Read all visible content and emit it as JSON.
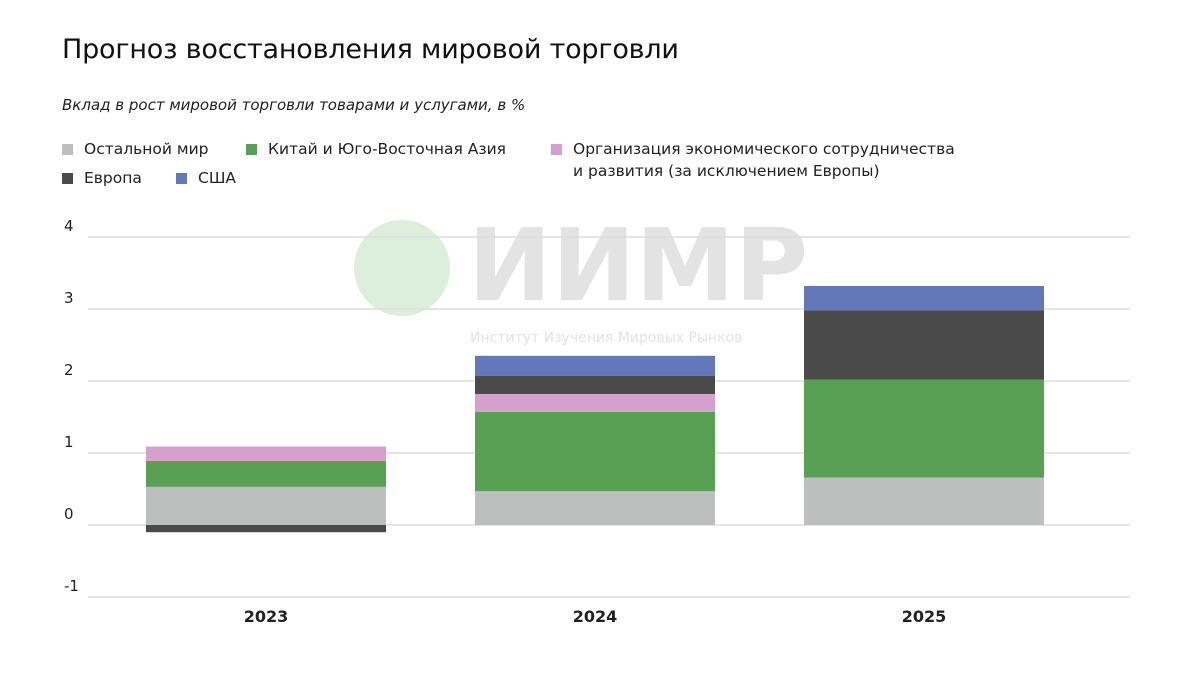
{
  "chart_data": {
    "type": "bar",
    "stacked": true,
    "title": "Прогноз восстановления мировой торговли",
    "subtitle": "Вклад в рост мировой торговли товарами и услугами, в %",
    "categories": [
      "2023",
      "2024",
      "2025"
    ],
    "series": [
      {
        "name": "Остальной мир",
        "color": "#bcbfbd",
        "values": [
          0.53,
          0.47,
          0.66
        ]
      },
      {
        "name": "Китай и Юго-Восточная Азия",
        "color": "#58a154",
        "values": [
          0.36,
          1.1,
          1.36
        ]
      },
      {
        "name": "Организация экономического сотрудничества и развития (за исключением Европы)",
        "color": "#d5a0cb",
        "values": [
          0.2,
          0.25,
          0.0
        ]
      },
      {
        "name": "Европа",
        "color": "#4a4a4a",
        "values": [
          -0.1,
          0.25,
          0.96
        ]
      },
      {
        "name": "США",
        "color": "#6378b8",
        "values": [
          0.0,
          0.28,
          0.34
        ]
      }
    ],
    "ylim": [
      -1,
      4
    ],
    "yticks": [
      "-1",
      "0",
      "1",
      "2",
      "3",
      "4"
    ],
    "grid": true,
    "legend_position": "top-left",
    "watermark": {
      "logo_text": "ИИМР",
      "caption": "Институт Изучения Мировых Рынков",
      "color": "#e3e3e3",
      "logo_color": "#dceedc"
    }
  },
  "legend": {
    "rest": "Остальной мир",
    "china": "Китай и Юго-Восточная Азия",
    "oecd_line1": "Организация экономического сотрудничества",
    "oecd_line2": "и развития (за исключением Европы)",
    "europe": "Европа",
    "usa": "США"
  }
}
